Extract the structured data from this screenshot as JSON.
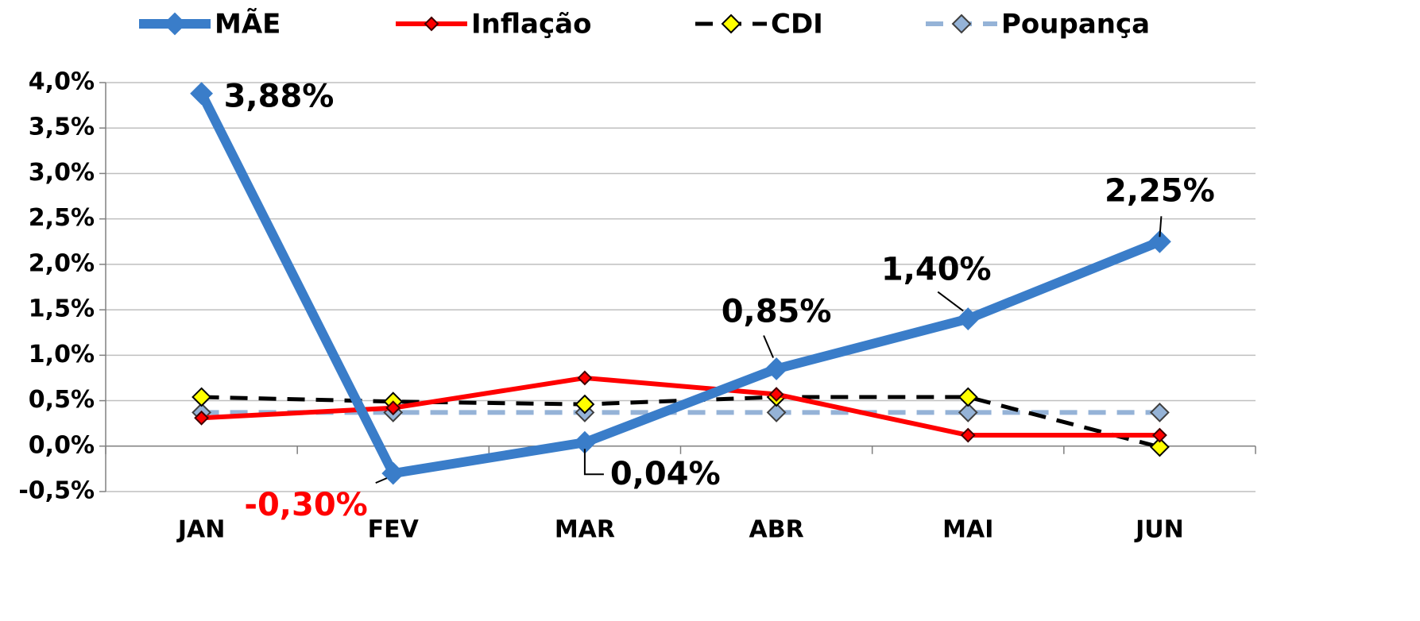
{
  "chart_data": {
    "type": "line",
    "categories": [
      "JAN",
      "FEV",
      "MAR",
      "ABR",
      "MAI",
      "JUN"
    ],
    "series": [
      {
        "name": "MÃE",
        "color": "#3a7dc9",
        "values": [
          3.88,
          -0.3,
          0.04,
          0.85,
          1.4,
          2.25
        ],
        "value_labels": [
          "3,88%",
          "-0,30%",
          "0,04%",
          "0,85%",
          "1,40%",
          "2,25%"
        ]
      },
      {
        "name": "Inflação",
        "color": "#ff0000",
        "values": [
          0.31,
          0.42,
          0.75,
          0.57,
          0.12,
          0.12
        ]
      },
      {
        "name": "CDI",
        "color": "#000000",
        "values": [
          0.54,
          0.49,
          0.46,
          0.54,
          0.54,
          -0.01
        ]
      },
      {
        "name": "Poupança",
        "color": "#95b3d7",
        "values": [
          0.37,
          0.37,
          0.37,
          0.37,
          0.37,
          0.37
        ]
      }
    ],
    "ylim": [
      -0.5,
      4.0
    ],
    "yticks": [
      {
        "value": -0.5,
        "label": "-0,5%"
      },
      {
        "value": 0,
        "label": "0,0%"
      },
      {
        "value": 0.5,
        "label": "0,5%"
      },
      {
        "value": 1.0,
        "label": "1,0%"
      },
      {
        "value": 1.5,
        "label": "1,5%"
      },
      {
        "value": 2.0,
        "label": "2,0%"
      },
      {
        "value": 2.5,
        "label": "2,5%"
      },
      {
        "value": 3.0,
        "label": "3,0%"
      },
      {
        "value": 3.5,
        "label": "3,5%"
      },
      {
        "value": 4.0,
        "label": "4,0%"
      }
    ],
    "grid": true,
    "legend": "top"
  }
}
